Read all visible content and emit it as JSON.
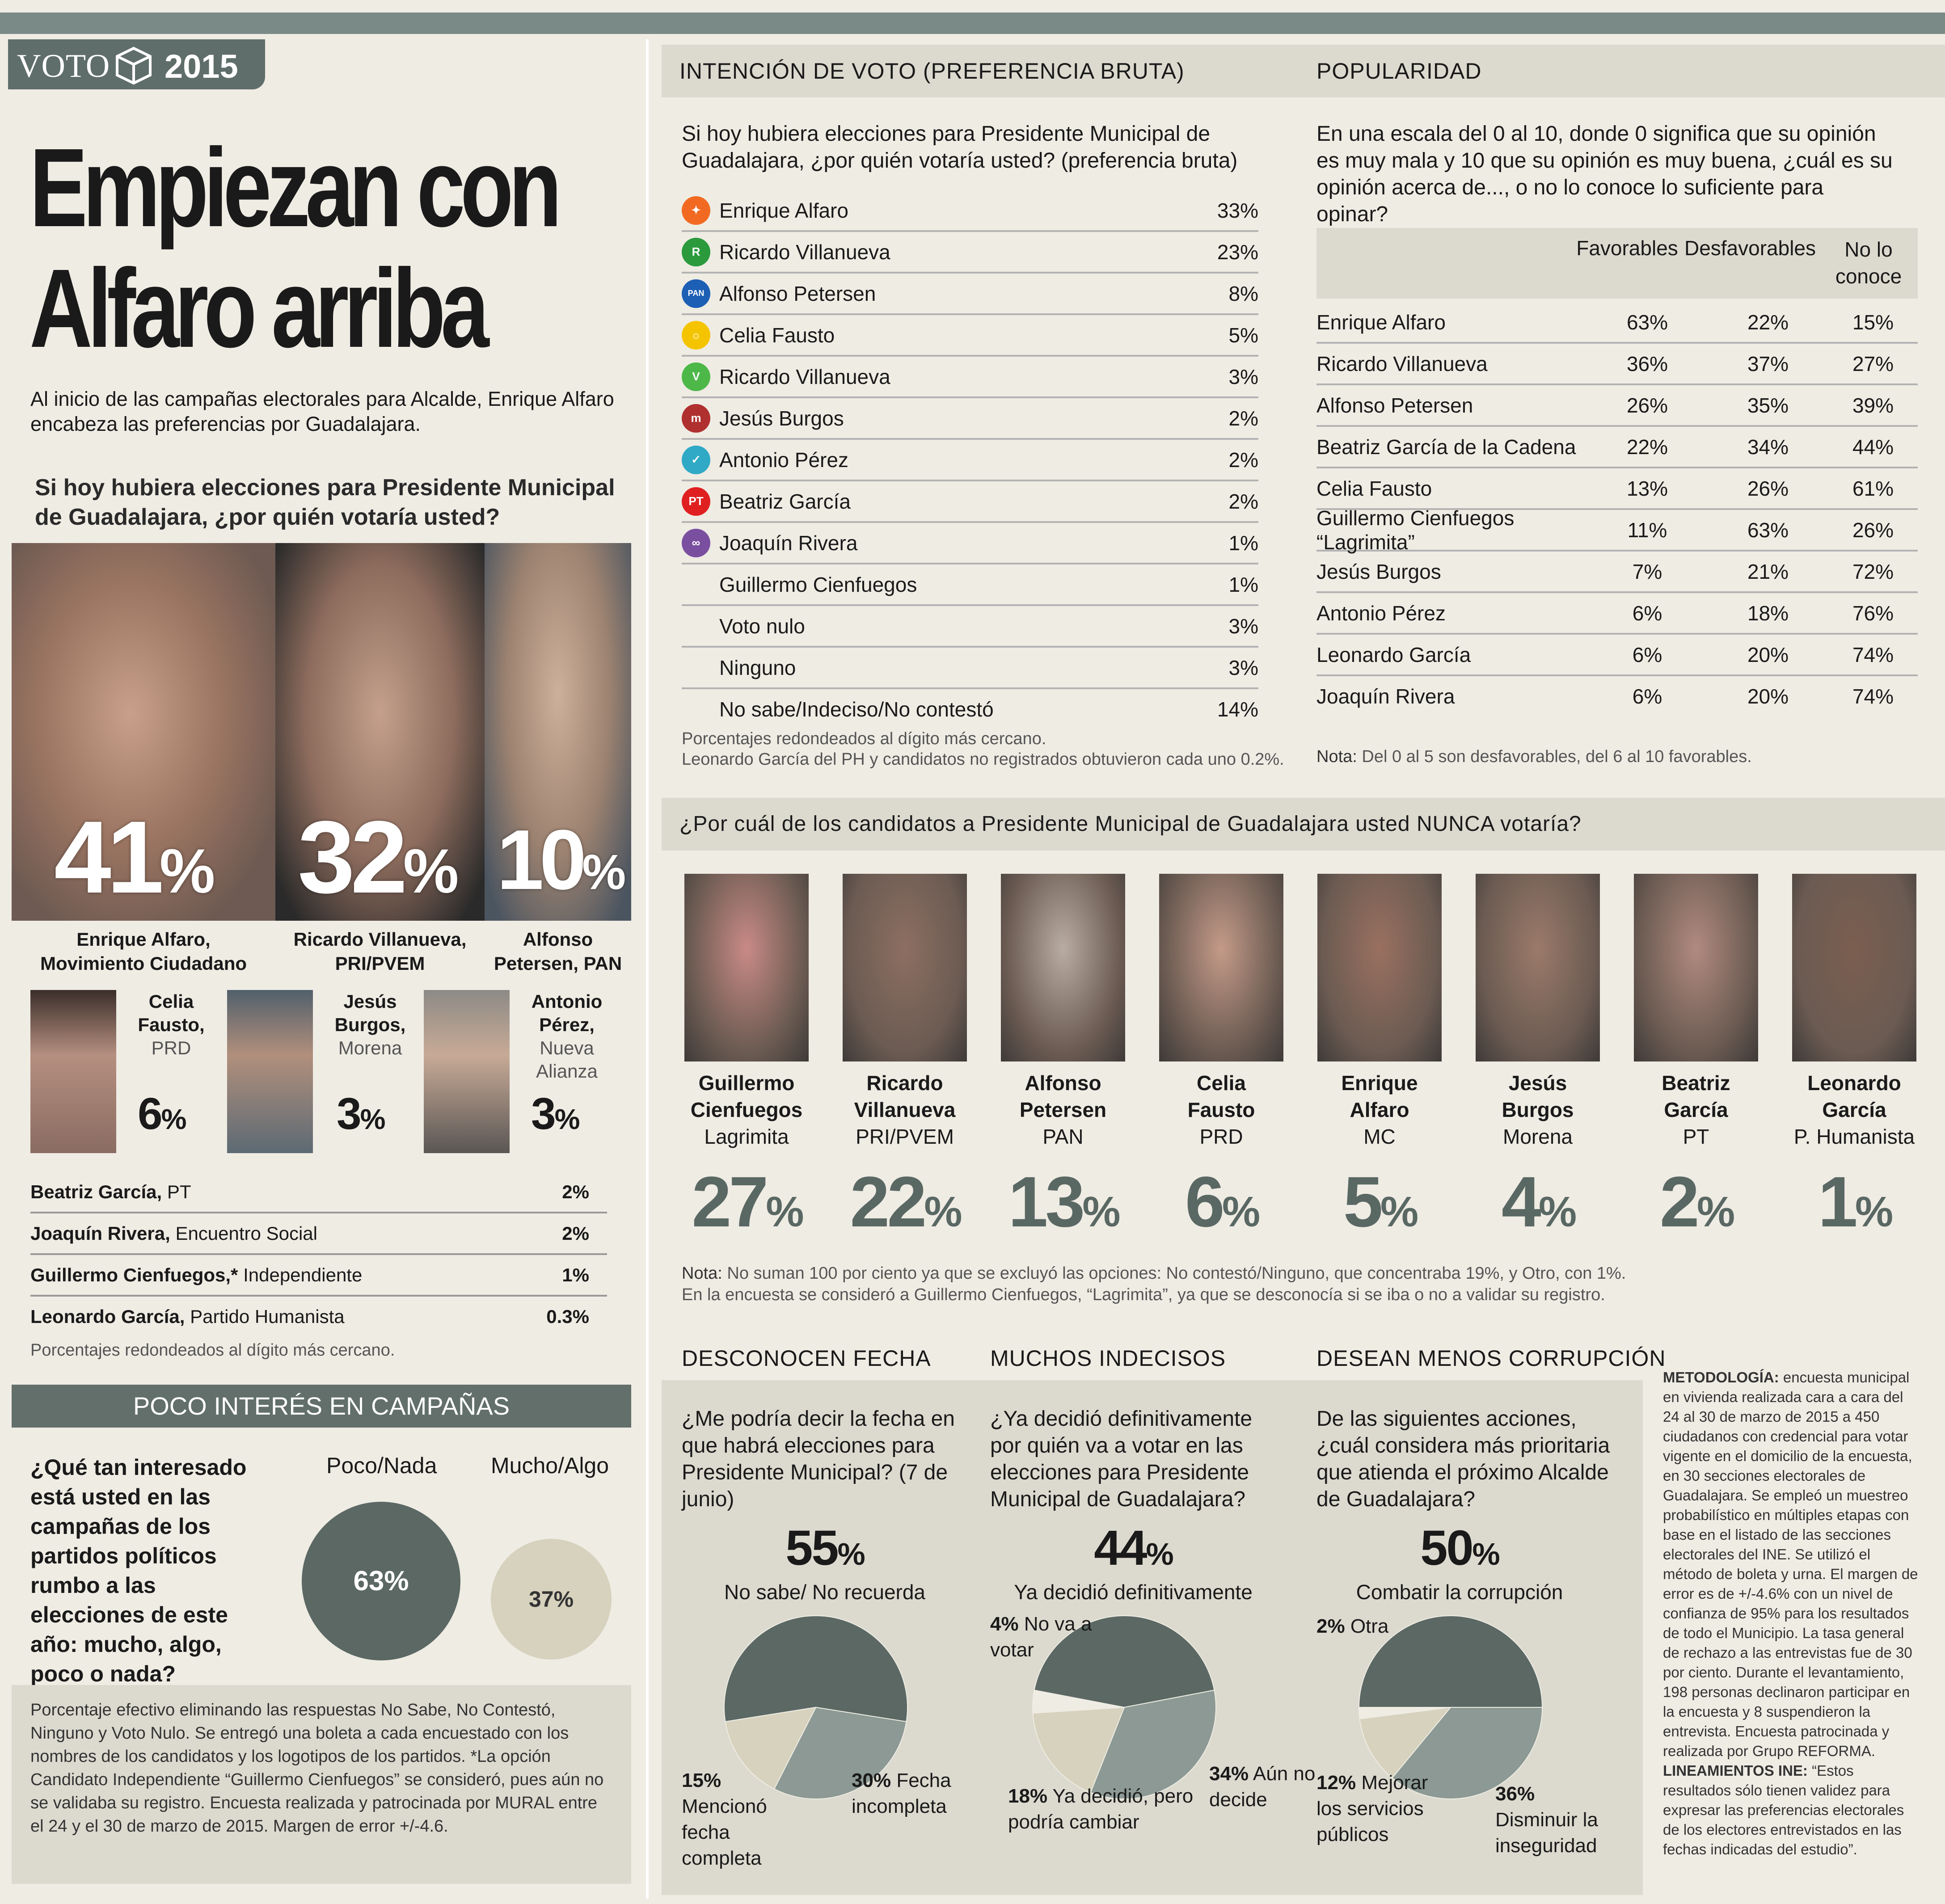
{
  "brand": {
    "voto": "VOTO",
    "year": "2015"
  },
  "left": {
    "headline_1": "Empiezan con",
    "headline_2": "Alfaro arriba",
    "intro": "Al inicio de las campañas electorales para Alcalde, Enrique Alfaro encabeza las preferencias por Guadalajara.",
    "question": "Si hoy hubiera elecciones para Presidente Municipal de Guadalajara, ¿por quién votaría usted?",
    "top3": [
      {
        "pct": "41",
        "name": "Enrique Alfaro,",
        "party": "Movimiento Ciudadano"
      },
      {
        "pct": "32",
        "name": "Ricardo Villanueva,",
        "party": "PRI/PVEM"
      },
      {
        "pct": "10",
        "name": "Alfonso",
        "party": "Petersen, PAN"
      }
    ],
    "mid3": [
      {
        "name1": "Celia",
        "name2": "Fausto,",
        "party": "PRD",
        "pct": "6"
      },
      {
        "name1": "Jesús",
        "name2": "Burgos,",
        "party": "Morena",
        "pct": "3"
      },
      {
        "name1": "Antonio",
        "name2": "Pérez,",
        "party": "Nueva Alianza",
        "pct": "3"
      }
    ],
    "rest": [
      {
        "name": "Beatriz García,",
        "party": "PT",
        "pct": "2%"
      },
      {
        "name": "Joaquín Rivera,",
        "party": "Encuentro Social",
        "pct": "2%"
      },
      {
        "name": "Guillermo Cienfuegos,*",
        "party": "Independiente",
        "pct": "1%"
      },
      {
        "name": "Leonardo García,",
        "party": "Partido Humanista",
        "pct": "0.3%"
      }
    ],
    "rounding_note": "Porcentajes redondeados al dígito más cercano.",
    "interest_header": "POCO INTERÉS EN CAMPAÑAS",
    "interest_question": "¿Qué tan interesado está usted en las campañas de los partidos políticos rumbo a las elecciones de este año: mucho, algo, poco o nada?",
    "interest_labels": [
      "Poco/Nada",
      "Mucho/Algo"
    ],
    "interest_values": [
      "63%",
      "37%"
    ],
    "footnote": "Porcentaje efectivo eliminando las respuestas No Sabe, No Contestó, Ninguno y Voto Nulo. Se entregó una boleta a cada encuestado con los nombres de los candidatos y los logotipos de los partidos. *La opción Candidato Independiente “Guillermo Cienfuegos” se consideró, pues aún no se validaba su registro. Encuesta realizada y patrocinada por MURAL entre el 24 y el 30 de marzo de 2015. Margen de error +/-4.6."
  },
  "intencion": {
    "header": "INTENCIÓN DE VOTO (PREFERENCIA BRUTA)",
    "question": "Si hoy hubiera elecciones para Presidente Municipal de Guadalajara, ¿por quién votaría usted? (preferencia bruta)",
    "rows": [
      {
        "name": "Enrique Alfaro",
        "pct": "33%",
        "icon": "mc-eagle-icon",
        "color": "#f26a21",
        "glyph": "✦"
      },
      {
        "name": "Ricardo Villanueva",
        "pct": "23%",
        "icon": "pri-icon",
        "color": "#2a9a3c",
        "glyph": "R"
      },
      {
        "name": "Alfonso Petersen",
        "pct": "8%",
        "icon": "pan-icon",
        "color": "#1d5fb4",
        "glyph": "PAN"
      },
      {
        "name": "Celia Fausto",
        "pct": "5%",
        "icon": "prd-sun-icon",
        "color": "#f5c400",
        "glyph": "☼"
      },
      {
        "name": "Ricardo Villanueva",
        "pct": "3%",
        "icon": "pvem-icon",
        "color": "#4db848",
        "glyph": "V"
      },
      {
        "name": "Jesús Burgos",
        "pct": "2%",
        "icon": "morena-icon",
        "color": "#b03030",
        "glyph": "m"
      },
      {
        "name": "Antonio Pérez",
        "pct": "2%",
        "icon": "nueva-alianza-icon",
        "color": "#2fa9c6",
        "glyph": "✓"
      },
      {
        "name": "Beatriz García",
        "pct": "2%",
        "icon": "pt-icon",
        "color": "#e02020",
        "glyph": "PT"
      },
      {
        "name": "Joaquín Rivera",
        "pct": "1%",
        "icon": "encuentro-social-icon",
        "color": "#7b4fa0",
        "glyph": "∞"
      },
      {
        "name": "Guillermo Cienfuegos",
        "pct": "1%",
        "icon": "",
        "color": "",
        "glyph": ""
      },
      {
        "name": "Voto nulo",
        "pct": "3%",
        "icon": "",
        "color": "",
        "glyph": ""
      },
      {
        "name": "Ninguno",
        "pct": "3%",
        "icon": "",
        "color": "",
        "glyph": ""
      },
      {
        "name": "No sabe/Indeciso/No contestó",
        "pct": "14%",
        "icon": "",
        "color": "",
        "glyph": ""
      }
    ],
    "note1": "Porcentajes redondeados al dígito más cercano.",
    "note2": "Leonardo García del PH y candidatos no registrados obtuvieron cada uno 0.2%."
  },
  "popularidad": {
    "header": "POPULARIDAD",
    "question": "En una escala del 0 al 10, donde 0 significa que su opinión es muy mala y 10 que su opinión es muy buena, ¿cuál es su opinión acerca de..., o no lo conoce lo suficiente para opinar?",
    "columns": [
      "Favorables",
      "Desfavorables",
      "No lo conoce"
    ],
    "rows": [
      {
        "name": "Enrique Alfaro",
        "fav": "63%",
        "desf": "22%",
        "nc": "15%"
      },
      {
        "name": "Ricardo Villanueva",
        "fav": "36%",
        "desf": "37%",
        "nc": "27%"
      },
      {
        "name": "Alfonso Petersen",
        "fav": "26%",
        "desf": "35%",
        "nc": "39%"
      },
      {
        "name": "Beatriz García de la Cadena",
        "fav": "22%",
        "desf": "34%",
        "nc": "44%"
      },
      {
        "name": "Celia Fausto",
        "fav": "13%",
        "desf": "26%",
        "nc": "61%"
      },
      {
        "name": "Guillermo Cienfuegos “Lagrimita”",
        "fav": "11%",
        "desf": "63%",
        "nc": "26%"
      },
      {
        "name": "Jesús Burgos",
        "fav": "7%",
        "desf": "21%",
        "nc": "72%"
      },
      {
        "name": "Antonio Pérez",
        "fav": "6%",
        "desf": "18%",
        "nc": "76%"
      },
      {
        "name": "Leonardo García",
        "fav": "6%",
        "desf": "20%",
        "nc": "74%"
      },
      {
        "name": "Joaquín Rivera",
        "fav": "6%",
        "desf": "20%",
        "nc": "74%"
      }
    ],
    "note_label": "Nota:",
    "note": "Del 0 al 5 son desfavorables, del 6 al 10 favorables."
  },
  "nunca": {
    "header": "¿Por cuál de los candidatos a Presidente Municipal de Guadalajara usted NUNCA votaría?",
    "cands": [
      {
        "n1": "Guillermo",
        "n2": "Cienfuegos",
        "p": "Lagrimita",
        "pct": "27"
      },
      {
        "n1": "Ricardo",
        "n2": "Villanueva",
        "p": "PRI/PVEM",
        "pct": "22"
      },
      {
        "n1": "Alfonso",
        "n2": "Petersen",
        "p": "PAN",
        "pct": "13"
      },
      {
        "n1": "Celia",
        "n2": "Fausto",
        "p": "PRD",
        "pct": "6"
      },
      {
        "n1": "Enrique",
        "n2": "Alfaro",
        "p": "MC",
        "pct": "5"
      },
      {
        "n1": "Jesús",
        "n2": "Burgos",
        "p": "Morena",
        "pct": "4"
      },
      {
        "n1": "Beatriz",
        "n2": "García",
        "p": "PT",
        "pct": "2"
      },
      {
        "n1": "Leonardo",
        "n2": "García",
        "p": "P. Humanista",
        "pct": "1"
      }
    ],
    "note_label": "Nota:",
    "note1": "No suman 100 por ciento ya que se excluyó las opciones: No contestó/Ninguno, que concentraba 19%, y Otro, con 1%.",
    "note2": "En la encuesta se consideró a Guillermo Cienfuegos, “Lagrimita”, ya que se desconocía si se iba o no a validar su registro."
  },
  "pies": [
    {
      "header": "DESCONOCEN FECHA",
      "question": "¿Me podría decir la fecha en que habrá elecciones para Presidente Municipal? (7 de junio)",
      "big": "55",
      "big_label": "No sabe/ No recuerda",
      "labels": [
        {
          "pct": "15%",
          "text": "Mencionó fecha completa"
        },
        {
          "pct": "30%",
          "text": "Fecha incompleta"
        }
      ]
    },
    {
      "header": "MUCHOS INDECISOS",
      "question": "¿Ya decidió definitivamente por quién va a votar en las elecciones para Presidente Municipal de Guadalajara?",
      "big": "44",
      "big_label": "Ya decidió definitivamente",
      "labels": [
        {
          "pct": "4%",
          "text": "No va a votar"
        },
        {
          "pct": "18%",
          "text": "Ya decidió, pero podría cambiar"
        },
        {
          "pct": "34%",
          "text": "Aún no decide"
        }
      ]
    },
    {
      "header": "DESEAN MENOS CORRUPCIÓN",
      "question": "De las siguientes acciones, ¿cuál considera más prioritaria que atienda el próximo Alcalde de Guadalajara?",
      "big": "50",
      "big_label": "Combatir la corrupción",
      "labels": [
        {
          "pct": "2%",
          "text": "Otra"
        },
        {
          "pct": "12%",
          "text": "Mejorar los servicios públicos"
        },
        {
          "pct": "36%",
          "text": "Disminuir la inseguridad"
        }
      ]
    }
  ],
  "metodologia": {
    "label1": "METODOLOGÍA:",
    "text1": "encuesta municipal en vivienda realizada cara a cara del 24 al 30 de marzo de 2015 a 450 ciudadanos con credencial para votar vigente en el domicilio de la encuesta, en 30 secciones electorales de Guadalajara. Se empleó un muestreo probabilístico en múltiples etapas con base en el listado de las secciones electorales del INE. Se utilizó el método de boleta y urna. El margen de error es de +/-4.6% con un nivel de confianza de 95% para los resultados de todo el Municipio. La tasa general de rechazo a las entrevistas fue de 30 por ciento. Durante el levantamiento, 198 personas declinaron participar en la encuesta y 8 suspendieron la entrevista. Encuesta patrocinada y realizada por Grupo REFORMA.",
    "label2": "LINEAMIENTOS INE:",
    "text2": "“Estos resultados sólo tienen validez para expresar las preferencias electorales de los electores entrevistados en las fechas indicadas del estudio”."
  },
  "chart_data": [
    {
      "type": "pie",
      "title": "DESCONOCEN FECHA",
      "categories": [
        "No sabe/ No recuerda",
        "Fecha incompleta",
        "Mencionó fecha completa"
      ],
      "values": [
        55,
        30,
        15
      ]
    },
    {
      "type": "pie",
      "title": "MUCHOS INDECISOS",
      "categories": [
        "Ya decidió definitivamente",
        "Aún no decide",
        "Ya decidió, pero podría cambiar",
        "No va a votar"
      ],
      "values": [
        44,
        34,
        18,
        4
      ]
    },
    {
      "type": "pie",
      "title": "DESEAN MENOS CORRUPCIÓN",
      "categories": [
        "Combatir la corrupción",
        "Disminuir la inseguridad",
        "Mejorar los servicios públicos",
        "Otra"
      ],
      "values": [
        50,
        36,
        12,
        2
      ]
    },
    {
      "type": "bubble",
      "title": "POCO INTERÉS EN CAMPAÑAS",
      "categories": [
        "Poco/Nada",
        "Mucho/Algo"
      ],
      "values": [
        63,
        37
      ]
    }
  ],
  "colors": {
    "dark": "#5b6864",
    "mid": "#8c9994",
    "light": "#d6d2bd"
  }
}
